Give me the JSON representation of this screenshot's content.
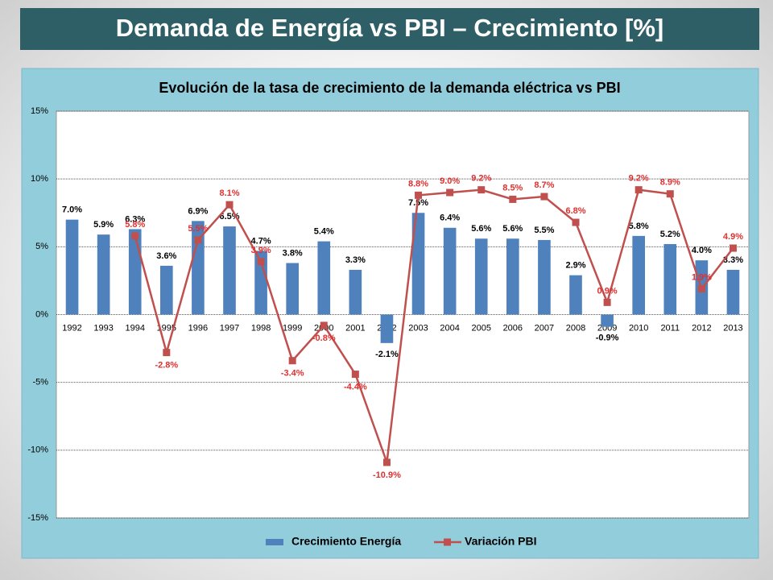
{
  "header": {
    "title": "Demanda de Energía vs PBI – Crecimiento [%]"
  },
  "chart_data": {
    "type": "bar_line",
    "title": "Evolución de la tasa de crecimiento de la demanda eléctrica vs PBI",
    "categories": [
      "1992",
      "1993",
      "1994",
      "1995",
      "1996",
      "1997",
      "1998",
      "1999",
      "2000",
      "2001",
      "2002",
      "2003",
      "2004",
      "2005",
      "2006",
      "2007",
      "2008",
      "2009",
      "2010",
      "2011",
      "2012",
      "2013"
    ],
    "series": [
      {
        "name": "Crecimiento Energía",
        "type": "bar",
        "color": "#4f81bd",
        "values": [
          7.0,
          5.9,
          6.3,
          3.6,
          6.9,
          6.5,
          4.7,
          3.8,
          5.4,
          3.3,
          -2.1,
          7.5,
          6.4,
          5.6,
          5.6,
          5.5,
          2.9,
          -0.9,
          5.8,
          5.2,
          4.0,
          3.3
        ],
        "value_labels": [
          "7.0%",
          "5.9%",
          "6.3%",
          "3.6%",
          "6.9%",
          "6.5%",
          "4.7%",
          "3.8%",
          "5.4%",
          "3.3%",
          "-2.1%",
          "7.5%",
          "6.4%",
          "5.6%",
          "5.6%",
          "5.5%",
          "2.9%",
          "-0.9%",
          "5.8%",
          "5.2%",
          "4.0%",
          "3.3%"
        ]
      },
      {
        "name": "Variación PBI",
        "type": "line",
        "color": "#c0504d",
        "values": [
          null,
          null,
          5.8,
          -2.8,
          5.5,
          8.1,
          3.9,
          -3.4,
          -0.8,
          -4.4,
          -10.9,
          8.8,
          9.0,
          9.2,
          8.5,
          8.7,
          6.8,
          0.9,
          9.2,
          8.9,
          1.9,
          4.9
        ],
        "value_labels": [
          null,
          null,
          "5.8%",
          "-2.8%",
          "5.5%",
          "8.1%",
          "3.9%",
          "-3.4%",
          "-0.8%",
          "-4.4%",
          "-10.9%",
          "8.8%",
          "9.0%",
          "9.2%",
          "8.5%",
          "8.7%",
          "6.8%",
          "0.9%",
          "9.2%",
          "8.9%",
          "1.9%",
          "4.9%"
        ]
      }
    ],
    "ylim": [
      -15,
      15
    ],
    "yticks": [
      {
        "value": -15,
        "label": "-15%"
      },
      {
        "value": -10,
        "label": "-10%"
      },
      {
        "value": -5,
        "label": "-5%"
      },
      {
        "value": 0,
        "label": "0%"
      },
      {
        "value": 5,
        "label": "5%"
      },
      {
        "value": 10,
        "label": "10%"
      },
      {
        "value": 15,
        "label": "15%"
      }
    ],
    "grid": true,
    "legend": "bottom"
  }
}
